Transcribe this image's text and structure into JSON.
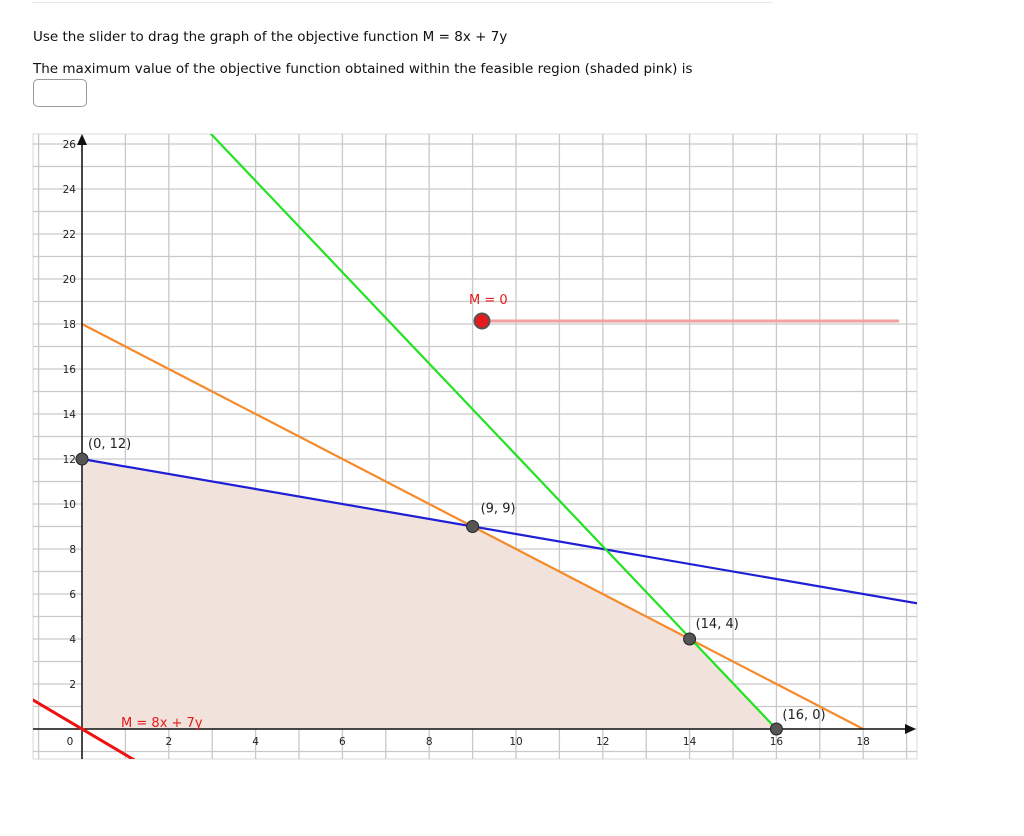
{
  "question": {
    "line1": "Use the slider to drag the graph of the objective function M = 8x + 7y",
    "line2": "The maximum value of the objective function obtained within the feasible region (shaded pink) is",
    "answer_value": ""
  },
  "graph": {
    "x_ticks": [
      0,
      2,
      4,
      6,
      8,
      10,
      12,
      14,
      16,
      18
    ],
    "y_ticks": [
      2,
      4,
      6,
      8,
      10,
      12,
      14,
      16,
      18,
      20,
      22,
      24,
      26
    ],
    "origin_label": "0",
    "feasible_region": [
      [
        0,
        0
      ],
      [
        0,
        12
      ],
      [
        9,
        9
      ],
      [
        14,
        4
      ],
      [
        16,
        0
      ]
    ],
    "points": [
      {
        "x": 0,
        "y": 12,
        "label": "(0, 12)"
      },
      {
        "x": 9,
        "y": 9,
        "label": "(9, 9)"
      },
      {
        "x": 14,
        "y": 4,
        "label": "(14, 4)"
      },
      {
        "x": 16,
        "y": 0,
        "label": "(16, 0)"
      }
    ],
    "constraint_lines": [
      {
        "name": "blue",
        "color": "#1f1fd6",
        "from": [
          0,
          12
        ],
        "to": [
          19.5,
          5.5
        ]
      },
      {
        "name": "orange",
        "color": "#f58a2a",
        "from": [
          0,
          18
        ],
        "to": [
          18,
          0
        ]
      },
      {
        "name": "green",
        "color": "#22e322",
        "from": [
          2.7,
          27
        ],
        "to": [
          16,
          0
        ]
      }
    ],
    "objective": {
      "label": "M = 8x + 7y",
      "color": "#ee1111",
      "slope": -1.142857
    },
    "slider": {
      "label": "M = 0",
      "value": 0
    },
    "colors": {
      "region_fill": "#f1e2db",
      "grid": "#c9c9c9",
      "axis": "#111111",
      "slider_track": "#f2a0a0",
      "point": "#555555"
    }
  }
}
